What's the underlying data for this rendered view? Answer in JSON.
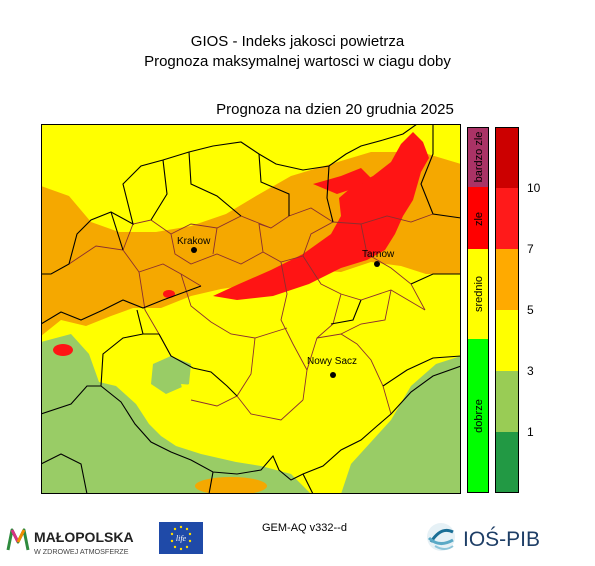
{
  "header": {
    "title": "GIOS - Indeks jakosci powietrza",
    "subtitle": "Prognoza maksymalnej wartosci w ciagu doby",
    "date_line": "Prognoza na dzien  20 grudnia 2025"
  },
  "cities": [
    {
      "name": "Krakow"
    },
    {
      "name": "Tarnow"
    },
    {
      "name": "Nowy Sacz"
    }
  ],
  "categories": [
    {
      "label": "bardzo zle",
      "color": "#aa3366"
    },
    {
      "label": "zle",
      "color": "#ff0000"
    },
    {
      "label": "srednio",
      "color": "#ffff00"
    },
    {
      "label": "dobrze",
      "color": "#00ff00"
    }
  ],
  "scale": {
    "bands": [
      "#cc0000",
      "#ff1a1a",
      "#ffaa00",
      "#ffff00",
      "#99cc55",
      "#229944"
    ],
    "ticks": [
      "10",
      "7",
      "5",
      "3",
      "1"
    ]
  },
  "colors": {
    "red": "#ff1414",
    "orange": "#f5a800",
    "yellow": "#ffff00",
    "green": "#99cc66",
    "border_major": "#000000",
    "border_minor": "#8b2f2f"
  },
  "footer": {
    "model_label": "GEM-AQ v332--d",
    "malopolska_name": "MAŁOPOLSKA",
    "malopolska_tagline": "W ZDROWEJ ATMOSFERZE",
    "eu_mark": "life",
    "institute": "IOŚ-PIB"
  }
}
